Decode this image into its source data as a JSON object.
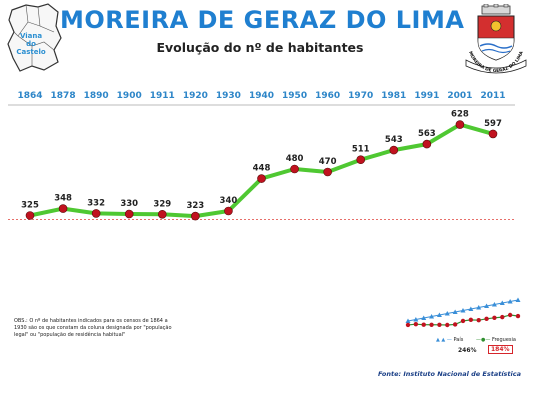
{
  "header": {
    "title": "MOREIRA DE GERAZ DO LIMA",
    "subtitle": "Evolução do nº de habitantes",
    "map_label": [
      "Viana",
      "do",
      "Castelo"
    ],
    "crest_text": "MOREIRA DE GERAZ DO LIMA"
  },
  "chart_data": {
    "type": "line",
    "title": "Evolução do nº de habitantes",
    "categories": [
      "1864",
      "1878",
      "1890",
      "1900",
      "1911",
      "1920",
      "1930",
      "1940",
      "1950",
      "1960",
      "1970",
      "1981",
      "1991",
      "2001",
      "2011"
    ],
    "series": [
      {
        "name": "Freguesia",
        "values": [
          325,
          348,
          332,
          330,
          329,
          323,
          340,
          448,
          480,
          470,
          511,
          543,
          563,
          628,
          597
        ]
      }
    ],
    "xlabel": "",
    "ylabel": "",
    "reference_value": 325,
    "colors": {
      "line": "#4fc832",
      "marker": "#c1121f",
      "axis_labels": "#2e86c8",
      "reference": "#e0403a"
    },
    "grid": false,
    "inset": {
      "legend": [
        "País",
        "Freguesia"
      ],
      "growth_pais": "246%",
      "growth_freguesia": "184%",
      "pais_color": "#3a8fd8",
      "freguesia_color": "#2f8f2f"
    }
  },
  "notes": {
    "obs": "OBS.: O nº de habitantes indicados para os censos de 1864 a 1930 são os que constam da coluna designada por \"população legal\" ou \"população de residência habitual\"",
    "source": "Fonte: Instituto Nacional de Estatística"
  }
}
